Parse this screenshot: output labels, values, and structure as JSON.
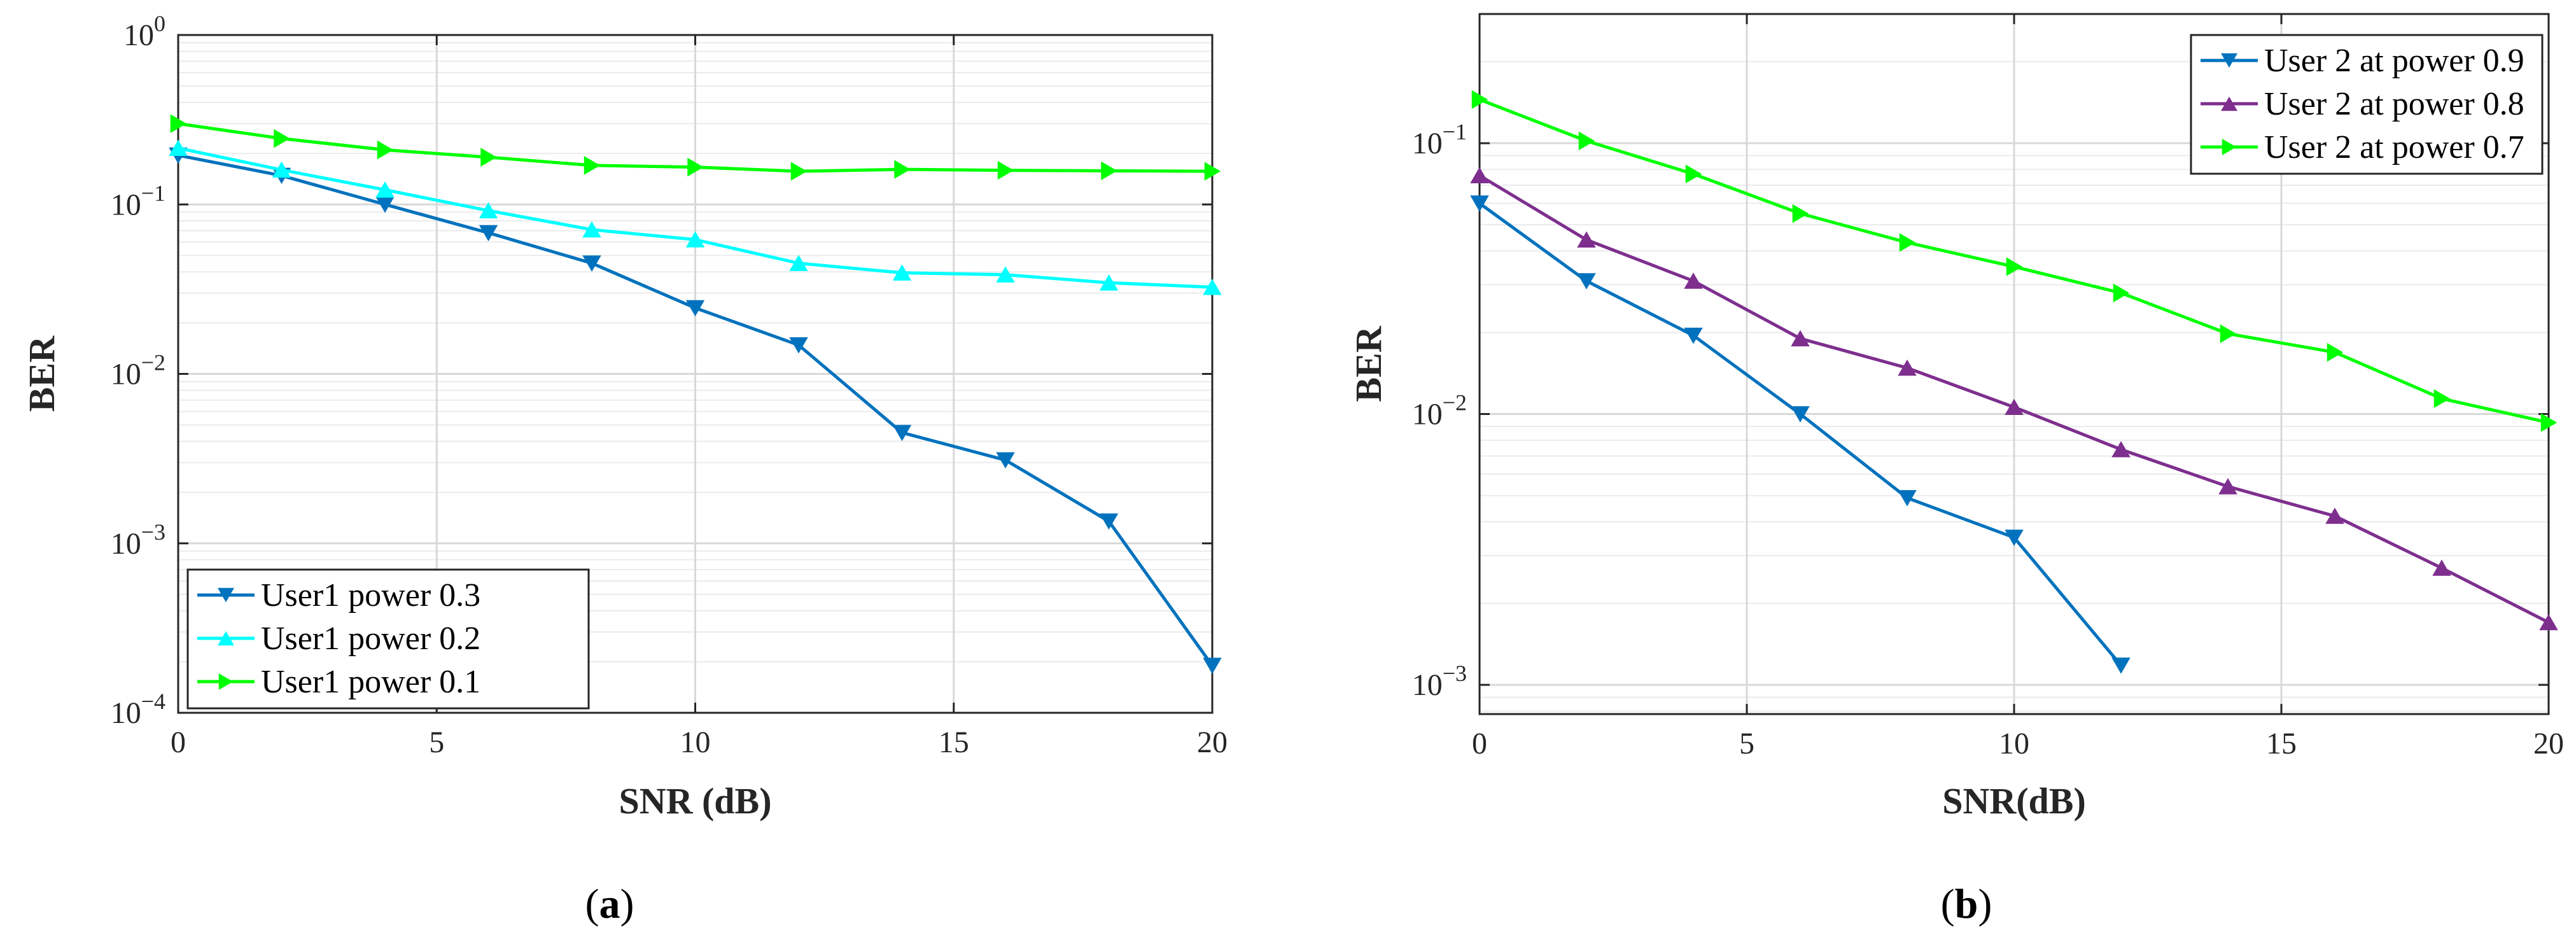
{
  "chart_data": [
    {
      "id": "a",
      "type": "line",
      "caption": "a",
      "xlabel": "SNR (dB)",
      "ylabel": "BER",
      "xscale": "linear",
      "yscale": "log",
      "xlim": [
        0,
        20
      ],
      "ylim": [
        0.0001,
        1
      ],
      "xticks": [
        "0",
        "5",
        "10",
        "15",
        "20"
      ],
      "yticks": [
        {
          "base": "10",
          "exp": "0"
        },
        {
          "base": "10",
          "exp": "−1"
        },
        {
          "base": "10",
          "exp": "−2"
        },
        {
          "base": "10",
          "exp": "−3"
        },
        {
          "base": "10",
          "exp": "−4"
        }
      ],
      "grid": true,
      "legend_position": "bottom-left",
      "x": [
        0,
        2,
        4,
        6,
        8,
        10,
        12,
        14,
        16,
        18,
        20
      ],
      "series": [
        {
          "name": "User1 power 0.3",
          "color": "#0072BD",
          "marker": "triangle-down",
          "values": [
            0.195,
            0.148,
            0.1,
            0.068,
            0.045,
            0.0245,
            0.0148,
            0.0045,
            0.0031,
            0.00135,
            0.00019
          ]
        },
        {
          "name": "User1 power 0.2",
          "color": "#00FFFF",
          "marker": "triangle-up",
          "values": [
            0.215,
            0.16,
            0.122,
            0.092,
            0.071,
            0.062,
            0.045,
            0.0395,
            0.0385,
            0.0345,
            0.0325
          ]
        },
        {
          "name": "User1 power 0.1",
          "color": "#00FF00",
          "marker": "triangle-right",
          "values": [
            0.3,
            0.245,
            0.21,
            0.19,
            0.17,
            0.166,
            0.157,
            0.161,
            0.159,
            0.158,
            0.157
          ]
        }
      ]
    },
    {
      "id": "b",
      "type": "line",
      "caption": "b",
      "xlabel": "SNR(dB)",
      "ylabel": "BER",
      "xscale": "linear",
      "yscale": "log",
      "xlim": [
        0,
        20
      ],
      "ylim": [
        0.00078,
        0.3
      ],
      "xticks": [
        "0",
        "5",
        "10",
        "15",
        "20"
      ],
      "yticks": [
        {
          "base": "10",
          "exp": "−1"
        },
        {
          "base": "10",
          "exp": "−2"
        },
        {
          "base": "10",
          "exp": "−3"
        }
      ],
      "grid": true,
      "legend_position": "top-right",
      "x": [
        0,
        2,
        4,
        6,
        8,
        10,
        12,
        14,
        16,
        18,
        20
      ],
      "series": [
        {
          "name": "User 2 at power 0.9",
          "color": "#0072BD",
          "marker": "triangle-down",
          "values": [
            0.06,
            0.031,
            0.0195,
            0.01,
            0.0049,
            0.0035,
            0.00118,
            null,
            null,
            null,
            null
          ]
        },
        {
          "name": "User 2 at power 0.8",
          "color": "#7E2F8E",
          "marker": "triangle-up",
          "values": [
            0.076,
            0.044,
            0.031,
            0.019,
            0.0148,
            0.0106,
            0.0074,
            0.0054,
            0.0042,
            0.0027,
            0.0017
          ]
        },
        {
          "name": "User 2 at power 0.7",
          "color": "#00FF00",
          "marker": "triangle-right",
          "values": [
            0.145,
            0.102,
            0.077,
            0.055,
            0.043,
            0.035,
            0.028,
            0.0198,
            0.0169,
            0.0114,
            0.0093
          ]
        }
      ]
    }
  ]
}
